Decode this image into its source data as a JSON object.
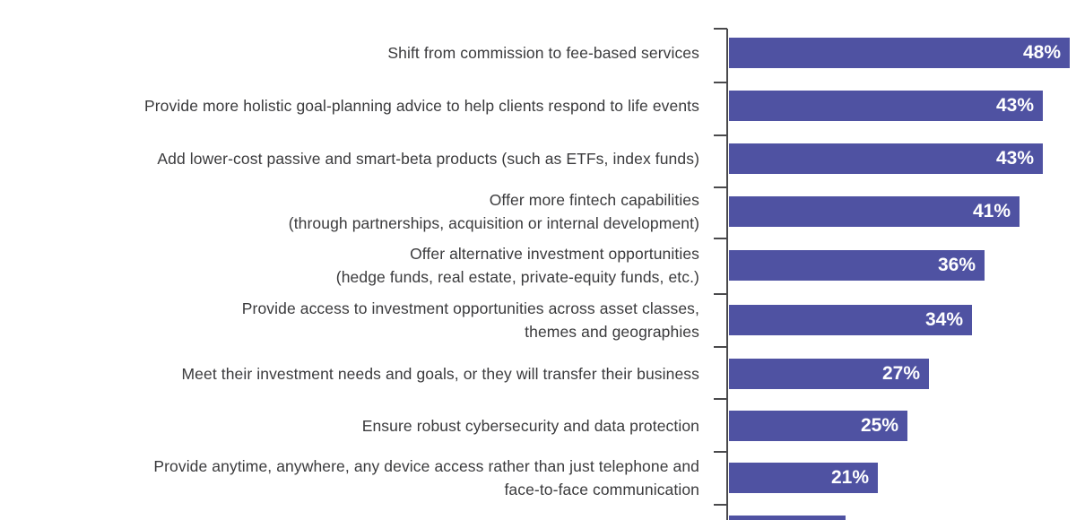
{
  "page": {
    "background_color": "#ffffff"
  },
  "chart_data": {
    "type": "bar",
    "orientation": "horizontal",
    "title": "",
    "xlabel": "",
    "ylabel": "",
    "unit": "%",
    "value_axis_range": [
      0,
      50
    ],
    "grid": "off",
    "legend": "none",
    "axis_side": "left-vertical-baseline-with-ticks",
    "categories": [
      "Shift from commission to fee-based services",
      "Provide more holistic goal-planning advice to help clients respond to life events",
      "Add lower-cost passive and smart-beta products (such as ETFs, index funds)",
      "Offer more fintech capabilities (through partnerships, acquisition or internal development)",
      "Offer alternative investment opportunities (hedge funds, real estate, private-equity funds, etc.)",
      "Provide access to investment opportunities across asset classes, themes and geographies",
      "Meet their investment needs and goals, or they will transfer their business",
      "Ensure robust cybersecurity and data protection",
      "Provide anytime, anywhere, any device access rather than just telephone and face-to-face communication"
    ],
    "rows": [
      {
        "label_lines": [
          "Shift from commission to fee-based services"
        ],
        "value": 48,
        "value_label": "48%"
      },
      {
        "label_lines": [
          "Provide more holistic goal-planning advice to help clients respond to life events"
        ],
        "value": 43,
        "value_label": "43%"
      },
      {
        "label_lines": [
          "Add lower-cost passive and smart-beta products (such as ETFs, index funds)"
        ],
        "value": 43,
        "value_label": "43%"
      },
      {
        "label_lines": [
          "Offer more fintech capabilities",
          "(through partnerships, acquisition or internal development)"
        ],
        "value": 41,
        "value_label": "41%"
      },
      {
        "label_lines": [
          "Offer alternative investment opportunities",
          "(hedge funds, real estate, private-equity funds, etc.)"
        ],
        "value": 36,
        "value_label": "36%"
      },
      {
        "label_lines": [
          "Provide access to investment opportunities across asset classes,",
          "themes and geographies"
        ],
        "value": 34,
        "value_label": "34%"
      },
      {
        "label_lines": [
          "Meet their investment needs and goals, or they will transfer their business"
        ],
        "value": 27,
        "value_label": "27%"
      },
      {
        "label_lines": [
          "Ensure robust cybersecurity and data protection"
        ],
        "value": 25,
        "value_label": "25%"
      },
      {
        "label_lines": [
          "Provide anytime, anywhere, any device access rather than just telephone and",
          "face-to-face communication"
        ],
        "value": 21,
        "value_label": "21%"
      }
    ],
    "truncated_bottom_bar": {
      "visible": true,
      "estimated_value": 16,
      "label_visible": false,
      "note": "A tenth bar is cut off at the bottom edge of the image; only its top sliver is visible."
    },
    "colors": {
      "bar": "#4f52a2",
      "value_label": "#ffffff",
      "category_label": "#3a3a3c",
      "axis": "#4a4a4c",
      "background": "#ffffff"
    }
  }
}
